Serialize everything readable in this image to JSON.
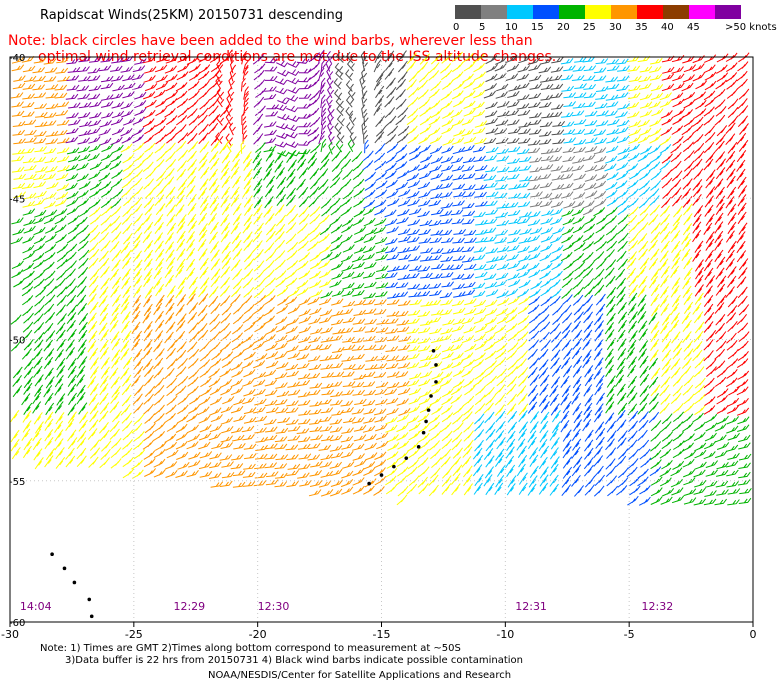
{
  "header": {
    "title": "Rapidscat Winds(25KM) 20150731 descending",
    "note_line1": "Note: black circles have been added to the wind barbs, wherever less than",
    "note_line2": "optimal wind retrieval conditions are met due to the ISS altitude changes."
  },
  "legend": {
    "units": ">50 knots",
    "bins": [
      {
        "label": "0",
        "color": "#505050"
      },
      {
        "label": "5",
        "color": "#808080"
      },
      {
        "label": "10",
        "color": "#00c8ff"
      },
      {
        "label": "15",
        "color": "#0050ff"
      },
      {
        "label": "20",
        "color": "#00b400"
      },
      {
        "label": "25",
        "color": "#ffff00"
      },
      {
        "label": "30",
        "color": "#ff9600"
      },
      {
        "label": "35",
        "color": "#ff0000"
      },
      {
        "label": "40",
        "color": "#8c3c00"
      },
      {
        "label": "45",
        "color": "#ff00ff"
      },
      {
        "label": "",
        "color": "#8000a0"
      }
    ]
  },
  "chart_data": {
    "type": "scatter",
    "xlim": [
      -30,
      0
    ],
    "ylim": [
      -60,
      -40
    ],
    "x_ticks": [
      "-30",
      "-25",
      "-20",
      "-15",
      "-10",
      "-5",
      "0"
    ],
    "y_ticks": [
      "-40",
      "-45",
      "-50",
      "-55",
      "-60"
    ],
    "grid": true,
    "time_labels": [
      {
        "text": "14:04",
        "x": -29.6
      },
      {
        "text": "12:29",
        "x": -23.4
      },
      {
        "text": "12:30",
        "x": -20.0
      },
      {
        "text": "12:31",
        "x": -9.6
      },
      {
        "text": "12:32",
        "x": -4.5
      }
    ],
    "flagged_points": [
      {
        "x": -15.5,
        "y": -55.1
      },
      {
        "x": -15.0,
        "y": -54.8
      },
      {
        "x": -14.5,
        "y": -54.5
      },
      {
        "x": -14.0,
        "y": -54.2
      },
      {
        "x": -13.5,
        "y": -53.8
      },
      {
        "x": -13.3,
        "y": -53.3
      },
      {
        "x": -13.2,
        "y": -52.9
      },
      {
        "x": -13.1,
        "y": -52.5
      },
      {
        "x": -13.0,
        "y": -52.0
      },
      {
        "x": -12.8,
        "y": -51.5
      },
      {
        "x": -12.8,
        "y": -50.9
      },
      {
        "x": -12.9,
        "y": -50.4
      },
      {
        "x": -28.3,
        "y": -57.6
      },
      {
        "x": -27.8,
        "y": -58.1
      },
      {
        "x": -27.4,
        "y": -58.6
      },
      {
        "x": -26.8,
        "y": -59.2
      },
      {
        "x": -26.7,
        "y": -59.8
      }
    ],
    "swaths": [
      {
        "name": "",
        "lon": [
          -30,
          -13
        ],
        "lat": [
          -57.5,
          -40
        ]
      },
      {
        "name": "",
        "lon": [
          -13,
          -10
        ],
        "lat": [
          -57,
          -40
        ]
      },
      {
        "name": "",
        "lon": [
          -10,
          -6
        ],
        "lat": [
          -57,
          -40
        ]
      },
      {
        "name": "",
        "lon": [
          -6,
          0
        ],
        "lat": [
          -56,
          -40
        ]
      }
    ]
  },
  "footer": {
    "line1": "Note: 1) Times are GMT 2)Times along bottom correspond to measurement at ~50S",
    "line2": "3)Data buffer is 22 hrs from 20150731 4) Black wind barbs indicate possible contamination",
    "line3": "NOAA/NESDIS/Center for Satellite Applications and Research"
  }
}
